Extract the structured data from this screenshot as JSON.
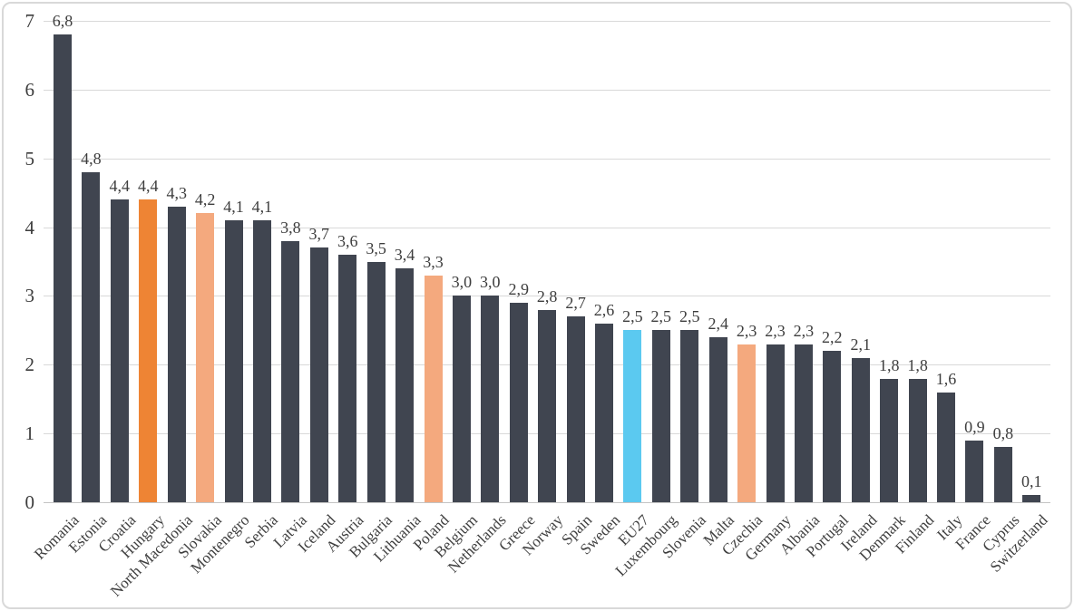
{
  "chart_data": {
    "type": "bar",
    "title": "",
    "xlabel": "",
    "ylabel": "",
    "categories": [
      "Romania",
      "Estonia",
      "Croatia",
      "Hungary",
      "North Macedonia",
      "Slovakia",
      "Montenegro",
      "Serbia",
      "Latvia",
      "Iceland",
      "Austria",
      "Bulgaria",
      "Lithuania",
      "Poland",
      "Belgium",
      "Netherlands",
      "Greece",
      "Norway",
      "Spain",
      "Sweden",
      "EU27",
      "Luxembourg",
      "Slovenia",
      "Malta",
      "Czechia",
      "Germany",
      "Albania",
      "Portugal",
      "Ireland",
      "Denmark",
      "Finland",
      "Italy",
      "France",
      "Cyprus",
      "Switzerland"
    ],
    "values": [
      6.8,
      4.8,
      4.4,
      4.4,
      4.3,
      4.2,
      4.1,
      4.1,
      3.8,
      3.7,
      3.6,
      3.5,
      3.4,
      3.3,
      3.0,
      3.0,
      2.9,
      2.8,
      2.7,
      2.6,
      2.5,
      2.5,
      2.5,
      2.4,
      2.3,
      2.3,
      2.3,
      2.2,
      2.1,
      1.8,
      1.8,
      1.6,
      0.9,
      0.8,
      0.1
    ],
    "value_labels": [
      "6,8",
      "4,8",
      "4,4",
      "4,4",
      "4,3",
      "4,2",
      "4,1",
      "4,1",
      "3,8",
      "3,7",
      "3,6",
      "3,5",
      "3,4",
      "3,3",
      "3,0",
      "3,0",
      "2,9",
      "2,8",
      "2,7",
      "2,6",
      "2,5",
      "2,5",
      "2,5",
      "2,4",
      "2,3",
      "2,3",
      "2,3",
      "2,2",
      "2,1",
      "1,8",
      "1,8",
      "1,6",
      "0,9",
      "0,8",
      "0,1"
    ],
    "bar_color_keys": [
      "dark",
      "dark",
      "dark",
      "orange",
      "dark",
      "peach",
      "dark",
      "dark",
      "dark",
      "dark",
      "dark",
      "dark",
      "dark",
      "peach",
      "dark",
      "dark",
      "dark",
      "dark",
      "dark",
      "dark",
      "blue",
      "dark",
      "dark",
      "dark",
      "peach",
      "dark",
      "dark",
      "dark",
      "dark",
      "dark",
      "dark",
      "dark",
      "dark",
      "dark",
      "dark"
    ],
    "palette": {
      "dark": "#404550",
      "orange": "#ee8434",
      "peach": "#f4a97e",
      "blue": "#5bc9f0"
    },
    "decimal_separator": ",",
    "ylim": [
      0,
      7
    ],
    "yticks": [
      0,
      1,
      2,
      3,
      4,
      5,
      6,
      7
    ],
    "grid": true,
    "legend": "none",
    "x_tick_rotation_deg": 45
  },
  "frame": {
    "border_color": "#d9d9d9",
    "gridline_color": "#d9d9d9",
    "text_color": "#3d3d3d",
    "background": "#ffffff"
  }
}
